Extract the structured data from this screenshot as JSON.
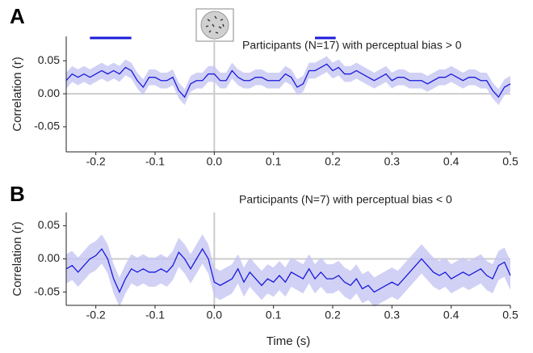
{
  "chart_data": [
    {
      "type": "line",
      "panel_label": "A",
      "annotation": "Participants (N=17) with perceptual bias > 0",
      "y_label": "Correlation (r)",
      "x": [
        -0.25,
        -0.24,
        -0.23,
        -0.22,
        -0.21,
        -0.2,
        -0.19,
        -0.18,
        -0.17,
        -0.16,
        -0.15,
        -0.14,
        -0.13,
        -0.12,
        -0.11,
        -0.1,
        -0.09,
        -0.08,
        -0.07,
        -0.06,
        -0.05,
        -0.04,
        -0.03,
        -0.02,
        -0.01,
        0,
        0.01,
        0.02,
        0.03,
        0.04,
        0.05,
        0.06,
        0.07,
        0.08,
        0.09,
        0.1,
        0.11,
        0.12,
        0.13,
        0.14,
        0.15,
        0.16,
        0.17,
        0.18,
        0.19,
        0.2,
        0.21,
        0.22,
        0.23,
        0.24,
        0.25,
        0.26,
        0.27,
        0.28,
        0.29,
        0.3,
        0.31,
        0.32,
        0.33,
        0.34,
        0.35,
        0.36,
        0.37,
        0.38,
        0.39,
        0.4,
        0.41,
        0.42,
        0.43,
        0.44,
        0.45,
        0.46,
        0.47,
        0.48,
        0.49,
        0.5
      ],
      "series": [
        {
          "color": "#1a1adb",
          "band_color": "#c6c6f4",
          "error": 0.012,
          "values": [
            0.02,
            0.03,
            0.025,
            0.03,
            0.025,
            0.03,
            0.035,
            0.03,
            0.035,
            0.03,
            0.04,
            0.035,
            0.02,
            0.01,
            0.025,
            0.025,
            0.02,
            0.02,
            0.025,
            0.005,
            -0.005,
            0.015,
            0.02,
            0.02,
            0.03,
            0.03,
            0.02,
            0.02,
            0.035,
            0.025,
            0.02,
            0.02,
            0.025,
            0.025,
            0.02,
            0.02,
            0.02,
            0.03,
            0.025,
            0.01,
            0.015,
            0.035,
            0.035,
            0.04,
            0.045,
            0.035,
            0.04,
            0.03,
            0.03,
            0.035,
            0.03,
            0.025,
            0.02,
            0.025,
            0.03,
            0.02,
            0.025,
            0.025,
            0.02,
            0.02,
            0.02,
            0.015,
            0.02,
            0.025,
            0.025,
            0.03,
            0.025,
            0.02,
            0.025,
            0.025,
            0.02,
            0.02,
            0.005,
            -0.005,
            0.01,
            0.015
          ]
        }
      ],
      "significance_bars": [
        [
          -0.21,
          -0.14
        ],
        [
          0.17,
          0.205
        ]
      ],
      "significance_color": "#1a1adb",
      "xlim": [
        -0.25,
        0.5
      ],
      "xticks": [
        -0.2,
        -0.1,
        {
          "value": 0,
          "label": "0.0"
        },
        0.1,
        0.2,
        0.3,
        0.4,
        0.5
      ],
      "ylim": [
        -0.088,
        0.087
      ],
      "yticks": [
        0.05,
        {
          "value": 0,
          "label": "0.00"
        },
        -0.05
      ],
      "zero_lines": true
    },
    {
      "type": "line",
      "panel_label": "B",
      "annotation": "Participants (N=7) with perceptual bias < 0",
      "y_label": "Correlation (r)",
      "x_label": "Time (s)",
      "x": [
        -0.25,
        -0.24,
        -0.23,
        -0.22,
        -0.21,
        -0.2,
        -0.19,
        -0.18,
        -0.17,
        -0.16,
        -0.15,
        -0.14,
        -0.13,
        -0.12,
        -0.11,
        -0.1,
        -0.09,
        -0.08,
        -0.07,
        -0.06,
        -0.05,
        -0.04,
        -0.03,
        -0.02,
        -0.01,
        0,
        0.01,
        0.02,
        0.03,
        0.04,
        0.05,
        0.06,
        0.07,
        0.08,
        0.09,
        0.1,
        0.11,
        0.12,
        0.13,
        0.14,
        0.15,
        0.16,
        0.17,
        0.18,
        0.19,
        0.2,
        0.21,
        0.22,
        0.23,
        0.24,
        0.25,
        0.26,
        0.27,
        0.28,
        0.29,
        0.3,
        0.31,
        0.32,
        0.33,
        0.34,
        0.35,
        0.36,
        0.37,
        0.38,
        0.39,
        0.4,
        0.41,
        0.42,
        0.43,
        0.44,
        0.45,
        0.46,
        0.47,
        0.48,
        0.49,
        0.5
      ],
      "series": [
        {
          "color": "#1a1adb",
          "band_color": "#c6c6f4",
          "error": 0.022,
          "values": [
            -0.015,
            -0.01,
            -0.02,
            -0.01,
            0,
            0.005,
            0.015,
            0,
            -0.03,
            -0.05,
            -0.03,
            -0.015,
            -0.02,
            -0.015,
            -0.02,
            -0.02,
            -0.015,
            -0.02,
            -0.01,
            0.01,
            0,
            -0.015,
            0,
            0.015,
            0,
            -0.035,
            -0.04,
            -0.035,
            -0.03,
            -0.015,
            -0.035,
            -0.02,
            -0.03,
            -0.04,
            -0.03,
            -0.035,
            -0.025,
            -0.035,
            -0.02,
            -0.025,
            -0.03,
            -0.015,
            -0.03,
            -0.02,
            -0.03,
            -0.03,
            -0.025,
            -0.035,
            -0.04,
            -0.03,
            -0.045,
            -0.04,
            -0.05,
            -0.045,
            -0.04,
            -0.035,
            -0.04,
            -0.03,
            -0.02,
            -0.01,
            0,
            -0.01,
            -0.02,
            -0.025,
            -0.02,
            -0.03,
            -0.025,
            -0.02,
            -0.025,
            -0.02,
            -0.015,
            -0.025,
            -0.03,
            -0.01,
            -0.005,
            -0.025
          ]
        }
      ],
      "xlim": [
        -0.25,
        0.5
      ],
      "xticks": [
        -0.2,
        -0.1,
        {
          "value": 0,
          "label": "0.0"
        },
        0.1,
        0.2,
        0.3,
        0.4,
        0.5
      ],
      "ylim": [
        -0.07,
        0.07
      ],
      "yticks": [
        0.05,
        {
          "value": 0,
          "label": "0.00"
        },
        -0.05
      ],
      "zero_lines": true
    }
  ]
}
